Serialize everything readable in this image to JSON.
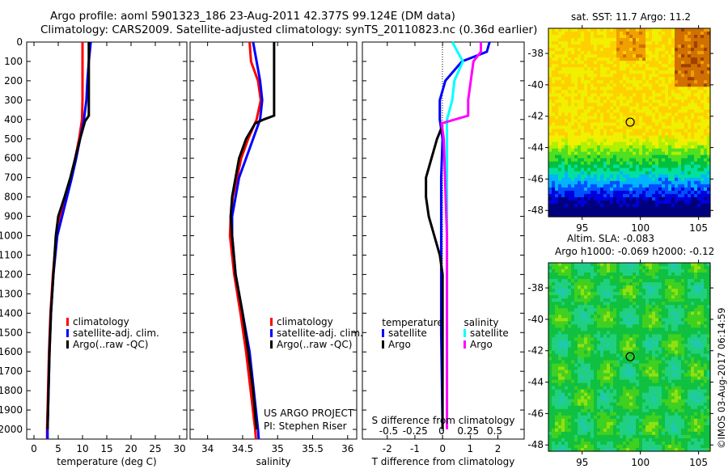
{
  "title_line1": "Argo profile: aoml 5901323_186 23-Aug-2011 42.377S 99.124E (DM data)",
  "title_line2": "Climatology: CARS2009. Satellite-adjusted climatology: synTS_20110823.nc (0.36d earlier)",
  "credit": "©IMOS 03-Aug-2017 06:14:59",
  "project_line1": "US ARGO PROJECT",
  "project_line2": "PI: Stephen Riser",
  "colors": {
    "climatology": "#ff0000",
    "satellite": "#0000ff",
    "argo": "#000000",
    "sal_satellite": "#00ffff",
    "sal_argo": "#ff00ff"
  },
  "chart_data": [
    {
      "type": "line",
      "name": "temperature",
      "xlabel": "temperature (deg C)",
      "xlim": [
        -1.5,
        31.5
      ],
      "ylim": [
        0,
        2050
      ],
      "xticks": [
        0,
        5,
        10,
        15,
        20,
        25,
        30
      ],
      "yticks": [
        0,
        100,
        200,
        300,
        400,
        500,
        600,
        700,
        800,
        900,
        1000,
        1100,
        1200,
        1300,
        1400,
        1500,
        1600,
        1700,
        1800,
        1900,
        2000
      ],
      "legend": [
        "climatology",
        "satellite-adj. clim.",
        "Argo(..raw -QC)"
      ],
      "series": [
        {
          "name": "climatology",
          "color": "#ff0000",
          "depth": [
            0,
            100,
            300,
            400,
            500,
            600,
            700,
            800,
            900,
            1000,
            1200,
            1400,
            1600,
            1800,
            2000,
            2050
          ],
          "values": [
            10.0,
            10.0,
            10.0,
            9.9,
            9.3,
            8.5,
            7.6,
            6.5,
            5.4,
            4.6,
            3.9,
            3.4,
            3.1,
            2.9,
            2.7,
            2.7
          ]
        },
        {
          "name": "satellite-adj. clim.",
          "color": "#0000ff",
          "depth": [
            0,
            100,
            200,
            300,
            400,
            500,
            600,
            700,
            800,
            900,
            1000,
            1200,
            1400,
            1600,
            2000,
            2050
          ],
          "values": [
            11.7,
            11.3,
            11.0,
            10.8,
            10.3,
            9.5,
            8.7,
            7.8,
            6.8,
            5.8,
            4.8,
            4.0,
            3.5,
            3.2,
            2.8,
            2.8
          ]
        },
        {
          "name": "Argo(..raw -QC)",
          "color": "#000000",
          "depth": [
            0,
            380,
            410,
            500,
            600,
            700,
            800,
            900,
            1000,
            1200,
            1400,
            1600,
            1800,
            2000
          ],
          "values": [
            11.3,
            11.3,
            10.5,
            9.5,
            8.5,
            7.5,
            6.3,
            5.0,
            4.5,
            4.0,
            3.5,
            3.2,
            3.0,
            2.8
          ]
        }
      ]
    },
    {
      "type": "line",
      "name": "salinity",
      "xlabel": "salinity",
      "xlim": [
        33.75,
        36.13
      ],
      "ylim": [
        0,
        2050
      ],
      "xticks": [
        34,
        34.5,
        35,
        35.5,
        36
      ],
      "legend": [
        "climatology",
        "satellite-adj. clim.",
        "Argo(..raw -QC)"
      ],
      "series": [
        {
          "name": "climatology",
          "color": "#ff0000",
          "depth": [
            0,
            100,
            200,
            300,
            400,
            500,
            600,
            700,
            800,
            900,
            1000,
            1200,
            1400,
            1600,
            2000,
            2050
          ],
          "values": [
            34.6,
            34.62,
            34.72,
            34.76,
            34.7,
            34.58,
            34.48,
            34.42,
            34.36,
            34.33,
            34.32,
            34.38,
            34.47,
            34.55,
            34.68,
            34.69
          ]
        },
        {
          "name": "satellite-adj. clim.",
          "color": "#0000ff",
          "depth": [
            0,
            100,
            200,
            300,
            400,
            500,
            600,
            700,
            800,
            900,
            1000,
            1200,
            1400,
            1600,
            2000,
            2050
          ],
          "values": [
            34.65,
            34.7,
            34.75,
            34.78,
            34.75,
            34.65,
            34.55,
            34.45,
            34.4,
            34.35,
            34.35,
            34.4,
            34.5,
            34.6,
            34.72,
            34.73
          ]
        },
        {
          "name": "Argo(..raw -QC)",
          "color": "#000000",
          "depth": [
            0,
            380,
            400,
            420,
            500,
            600,
            700,
            800,
            900,
            1000,
            1200,
            1400,
            1600,
            1800,
            2000
          ],
          "values": [
            34.95,
            34.95,
            34.8,
            34.68,
            34.55,
            34.45,
            34.4,
            34.35,
            34.33,
            34.35,
            34.4,
            34.5,
            34.58,
            34.65,
            34.7
          ]
        }
      ]
    },
    {
      "type": "line",
      "name": "difference",
      "xlabel": "T difference from climatology",
      "x2label": "S difference from climatology",
      "xlim": [
        -2.9,
        2.95
      ],
      "x2lim": [
        -0.5,
        0.5
      ],
      "xticks": [
        -2,
        -1,
        0,
        1,
        2
      ],
      "x2ticks": [
        -0.5,
        -0.25,
        0,
        0.25,
        0.5
      ],
      "x2ticklabels": [
        "-0.5",
        "-0.25",
        "0",
        "0.25",
        "0.5"
      ],
      "legend_titles": [
        "temperature",
        "salinity"
      ],
      "legend": [
        "satellite",
        "Argo",
        "satellite",
        "Argo"
      ],
      "series": [
        {
          "name": "T satellite",
          "axis": "T",
          "color": "#0000ff",
          "depth": [
            0,
            50,
            100,
            200,
            300,
            400,
            500,
            700,
            1000,
            1500,
            2000
          ],
          "values": [
            1.7,
            1.6,
            0.7,
            0.1,
            -0.1,
            -0.1,
            0,
            -0.05,
            -0.05,
            -0.05,
            0
          ]
        },
        {
          "name": "T Argo",
          "axis": "T",
          "color": "#000000",
          "depth": [
            430,
            500,
            600,
            700,
            800,
            900,
            1000,
            1100,
            1200,
            1500,
            2000
          ],
          "values": [
            0,
            -0.2,
            -0.4,
            -0.6,
            -0.6,
            -0.5,
            -0.3,
            -0.1,
            0,
            0,
            0
          ]
        },
        {
          "name": "S satellite",
          "axis": "S",
          "color": "#00ffff",
          "depth": [
            0,
            100,
            200,
            300,
            400,
            500,
            1000,
            1500,
            2000
          ],
          "values": [
            0.1,
            0.2,
            0.12,
            0.1,
            0.05,
            0.05,
            0.05,
            0.05,
            0.05
          ]
        },
        {
          "name": "S Argo",
          "axis": "S",
          "color": "#ff00ff",
          "depth": [
            0,
            50,
            100,
            300,
            380,
            420,
            500,
            1000,
            1500,
            2000
          ],
          "values": [
            0.37,
            0.37,
            0.3,
            0.25,
            0.25,
            0.0,
            0.02,
            0.05,
            0.05,
            0.05
          ]
        }
      ]
    },
    {
      "type": "heatmap",
      "name": "sst-map",
      "title": "sat. SST: 11.7 Argo: 11.2",
      "xlim": [
        92.1,
        106
      ],
      "ylim": [
        -48.4,
        -36.4
      ],
      "xticks": [
        95,
        100,
        105
      ],
      "yticks": [
        -38,
        -40,
        -42,
        -44,
        -46,
        -48
      ],
      "marker": [
        99.124,
        -42.377
      ]
    },
    {
      "type": "heatmap",
      "name": "sla-map",
      "title_line1": "Altim. SLA: -0.083",
      "title_line2": "Argo h1000: -0.069 h2000: -0.12",
      "xlim": [
        92.1,
        106
      ],
      "ylim": [
        -48.4,
        -36.4
      ],
      "xticks": [
        95,
        100,
        105
      ],
      "yticks": [
        -38,
        -40,
        -42,
        -44,
        -46,
        -48
      ],
      "marker": [
        99.124,
        -42.377
      ]
    }
  ]
}
